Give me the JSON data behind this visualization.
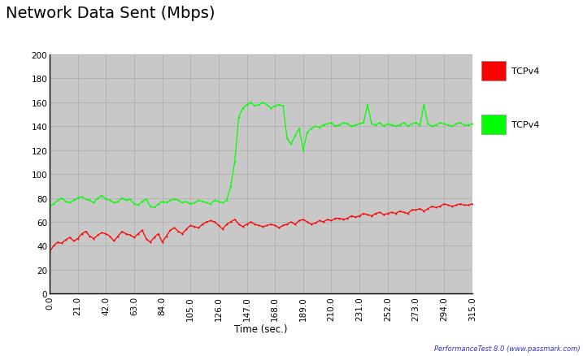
{
  "title": "Network Data Sent (Mbps)",
  "xlabel": "Time (sec.)",
  "xlim": [
    0,
    315
  ],
  "ylim": [
    0,
    200
  ],
  "yticks": [
    0,
    20,
    40,
    60,
    80,
    100,
    120,
    140,
    160,
    180,
    200
  ],
  "xtick_values": [
    0.0,
    21.0,
    42.0,
    63.0,
    84.0,
    105.0,
    126.0,
    147.0,
    168.0,
    189.0,
    210.0,
    231.0,
    252.0,
    273.0,
    294.0,
    315.0
  ],
  "bg_color": "#c8c8c8",
  "outer_bg": "#ffffff",
  "grid_color": "#b0b0b0",
  "legend1_color": "#ff0000",
  "legend2_color": "#00ff00",
  "legend1_label": "TCPv4",
  "legend2_label": "TCPv4",
  "watermark": "PerformanceTest 8.0 (www.passmark.com)",
  "title_fontsize": 14,
  "tick_fontsize": 7.5,
  "red_x": [
    0,
    3,
    6,
    9,
    12,
    15,
    18,
    21,
    24,
    27,
    30,
    33,
    36,
    39,
    42,
    45,
    48,
    51,
    54,
    57,
    60,
    63,
    66,
    69,
    72,
    75,
    78,
    81,
    84,
    87,
    90,
    93,
    96,
    99,
    102,
    105,
    108,
    111,
    114,
    117,
    120,
    123,
    126,
    129,
    132,
    135,
    138,
    141,
    144,
    147,
    150,
    153,
    156,
    159,
    162,
    165,
    168,
    171,
    174,
    177,
    180,
    183,
    186,
    189,
    192,
    195,
    198,
    201,
    204,
    207,
    210,
    213,
    216,
    219,
    222,
    225,
    228,
    231,
    234,
    237,
    240,
    243,
    246,
    249,
    252,
    255,
    258,
    261,
    264,
    267,
    270,
    273,
    276,
    279,
    282,
    285,
    288,
    291,
    294,
    297,
    300,
    303,
    306,
    309,
    312,
    315
  ],
  "red_y": [
    35,
    40,
    43,
    42,
    45,
    47,
    44,
    46,
    50,
    52,
    48,
    46,
    49,
    51,
    50,
    48,
    44,
    48,
    52,
    50,
    49,
    47,
    50,
    53,
    46,
    43,
    47,
    50,
    43,
    48,
    53,
    55,
    52,
    50,
    54,
    57,
    56,
    55,
    58,
    60,
    61,
    60,
    57,
    54,
    58,
    60,
    62,
    58,
    56,
    58,
    60,
    58,
    57,
    56,
    57,
    58,
    57,
    55,
    57,
    58,
    60,
    58,
    61,
    62,
    60,
    58,
    59,
    61,
    60,
    62,
    61,
    63,
    63,
    62,
    63,
    65,
    64,
    65,
    67,
    66,
    65,
    67,
    68,
    66,
    67,
    68,
    67,
    69,
    68,
    67,
    70,
    70,
    71,
    69,
    71,
    73,
    72,
    73,
    75,
    74,
    73,
    74,
    75,
    74,
    74,
    75
  ],
  "green_x": [
    0,
    3,
    6,
    9,
    12,
    15,
    18,
    21,
    24,
    27,
    30,
    33,
    36,
    39,
    42,
    45,
    48,
    51,
    54,
    57,
    60,
    63,
    66,
    69,
    72,
    75,
    78,
    81,
    84,
    87,
    90,
    93,
    96,
    99,
    102,
    105,
    108,
    111,
    114,
    117,
    120,
    123,
    126,
    129,
    132,
    135,
    138,
    141,
    144,
    147,
    150,
    153,
    156,
    159,
    162,
    165,
    168,
    171,
    174,
    177,
    180,
    183,
    186,
    189,
    192,
    195,
    198,
    201,
    204,
    207,
    210,
    213,
    216,
    219,
    222,
    225,
    228,
    231,
    234,
    237,
    240,
    243,
    246,
    249,
    252,
    255,
    258,
    261,
    264,
    267,
    270,
    273,
    276,
    279,
    282,
    285,
    288,
    291,
    294,
    297,
    300,
    303,
    306,
    309,
    312,
    315
  ],
  "green_y": [
    73,
    75,
    78,
    80,
    77,
    76,
    78,
    80,
    81,
    79,
    78,
    76,
    80,
    82,
    79,
    78,
    76,
    77,
    80,
    78,
    79,
    75,
    74,
    77,
    79,
    73,
    72,
    75,
    77,
    76,
    78,
    79,
    78,
    76,
    77,
    75,
    76,
    78,
    77,
    76,
    75,
    78,
    77,
    76,
    78,
    90,
    110,
    148,
    155,
    158,
    160,
    157,
    158,
    160,
    158,
    155,
    157,
    158,
    157,
    130,
    125,
    132,
    138,
    120,
    135,
    138,
    140,
    139,
    141,
    142,
    143,
    140,
    141,
    143,
    142,
    140,
    141,
    142,
    143,
    158,
    142,
    141,
    143,
    140,
    142,
    141,
    140,
    141,
    143,
    140,
    142,
    143,
    141,
    158,
    142,
    140,
    141,
    143,
    142,
    141,
    140,
    142,
    143,
    141,
    141,
    142
  ]
}
